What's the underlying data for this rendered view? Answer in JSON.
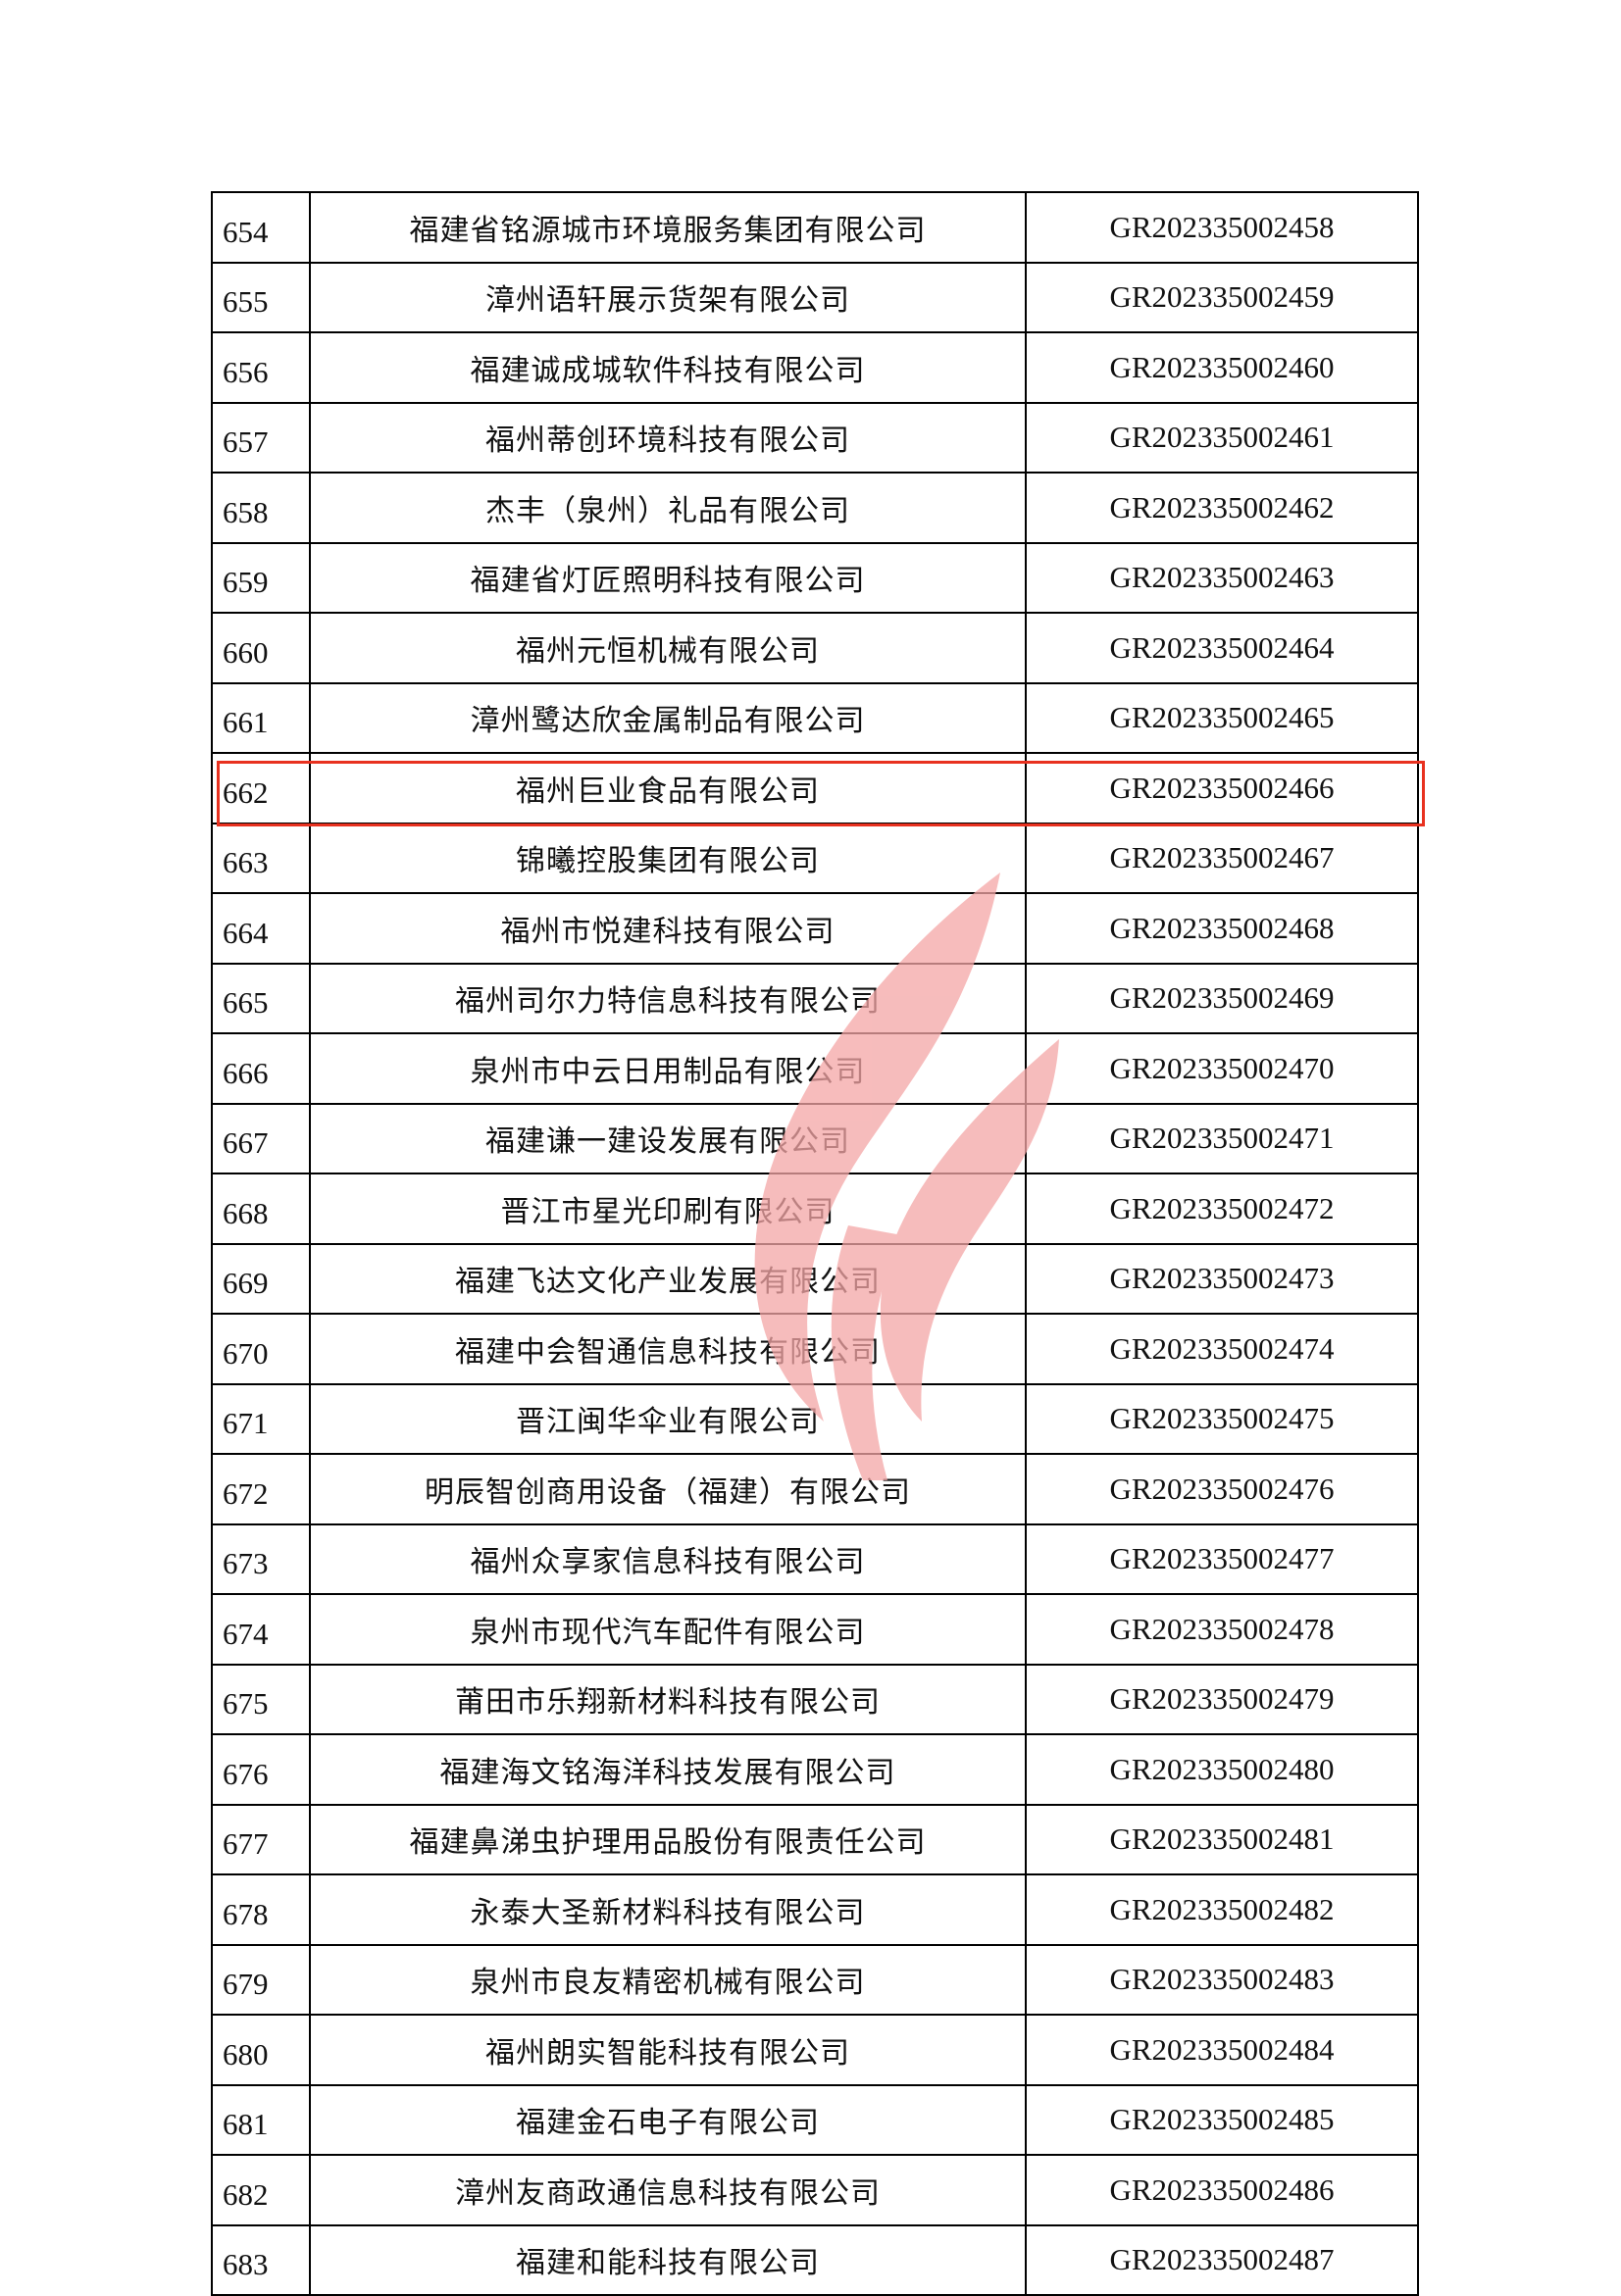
{
  "highlight_color": "#e8311f",
  "watermark_color": "#f4a6a6",
  "rows": [
    {
      "no": "654",
      "name": "福建省铭源城市环境服务集团有限公司",
      "code": "GR202335002458"
    },
    {
      "no": "655",
      "name": "漳州语轩展示货架有限公司",
      "code": "GR202335002459"
    },
    {
      "no": "656",
      "name": "福建诚成城软件科技有限公司",
      "code": "GR202335002460"
    },
    {
      "no": "657",
      "name": "福州蒂创环境科技有限公司",
      "code": "GR202335002461"
    },
    {
      "no": "658",
      "name": "杰丰（泉州）礼品有限公司",
      "code": "GR202335002462"
    },
    {
      "no": "659",
      "name": "福建省灯匠照明科技有限公司",
      "code": "GR202335002463"
    },
    {
      "no": "660",
      "name": "福州元恒机械有限公司",
      "code": "GR202335002464"
    },
    {
      "no": "661",
      "name": "漳州鹭达欣金属制品有限公司",
      "code": "GR202335002465"
    },
    {
      "no": "662",
      "name": "福州巨业食品有限公司",
      "code": "GR202335002466"
    },
    {
      "no": "663",
      "name": "锦曦控股集团有限公司",
      "code": "GR202335002467",
      "highlighted": true
    },
    {
      "no": "664",
      "name": "福州市悦建科技有限公司",
      "code": "GR202335002468"
    },
    {
      "no": "665",
      "name": "福州司尔力特信息科技有限公司",
      "code": "GR202335002469"
    },
    {
      "no": "666",
      "name": "泉州市中云日用制品有限公司",
      "code": "GR202335002470"
    },
    {
      "no": "667",
      "name": "福建谦一建设发展有限公司",
      "code": "GR202335002471"
    },
    {
      "no": "668",
      "name": "晋江市星光印刷有限公司",
      "code": "GR202335002472"
    },
    {
      "no": "669",
      "name": "福建飞达文化产业发展有限公司",
      "code": "GR202335002473"
    },
    {
      "no": "670",
      "name": "福建中会智通信息科技有限公司",
      "code": "GR202335002474"
    },
    {
      "no": "671",
      "name": "晋江闽华伞业有限公司",
      "code": "GR202335002475"
    },
    {
      "no": "672",
      "name": "明辰智创商用设备（福建）有限公司",
      "code": "GR202335002476"
    },
    {
      "no": "673",
      "name": "福州众享家信息科技有限公司",
      "code": "GR202335002477"
    },
    {
      "no": "674",
      "name": "泉州市现代汽车配件有限公司",
      "code": "GR202335002478"
    },
    {
      "no": "675",
      "name": "莆田市乐翔新材料科技有限公司",
      "code": "GR202335002479"
    },
    {
      "no": "676",
      "name": "福建海文铭海洋科技发展有限公司",
      "code": "GR202335002480"
    },
    {
      "no": "677",
      "name": "福建鼻涕虫护理用品股份有限责任公司",
      "code": "GR202335002481"
    },
    {
      "no": "678",
      "name": "永泰大圣新材料科技有限公司",
      "code": "GR202335002482"
    },
    {
      "no": "679",
      "name": "泉州市良友精密机械有限公司",
      "code": "GR202335002483"
    },
    {
      "no": "680",
      "name": "福州朗实智能科技有限公司",
      "code": "GR202335002484"
    },
    {
      "no": "681",
      "name": "福建金石电子有限公司",
      "code": "GR202335002485"
    },
    {
      "no": "682",
      "name": "漳州友商政通信息科技有限公司",
      "code": "GR202335002486"
    },
    {
      "no": "683",
      "name": "福建和能科技有限公司",
      "code": "GR202335002487"
    }
  ]
}
